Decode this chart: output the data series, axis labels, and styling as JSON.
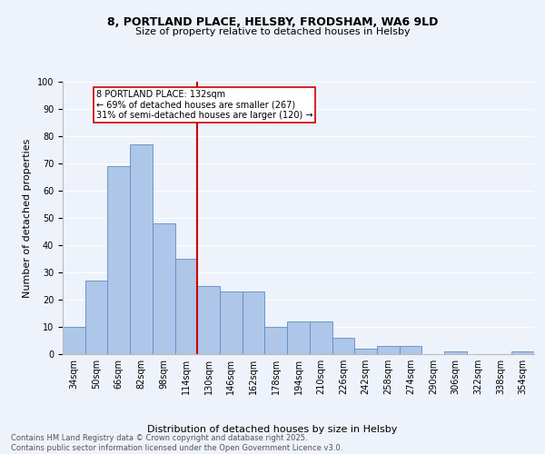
{
  "title1": "8, PORTLAND PLACE, HELSBY, FRODSHAM, WA6 9LD",
  "title2": "Size of property relative to detached houses in Helsby",
  "xlabel": "Distribution of detached houses by size in Helsby",
  "ylabel": "Number of detached properties",
  "categories": [
    "34sqm",
    "50sqm",
    "66sqm",
    "82sqm",
    "98sqm",
    "114sqm",
    "130sqm",
    "146sqm",
    "162sqm",
    "178sqm",
    "194sqm",
    "210sqm",
    "226sqm",
    "242sqm",
    "258sqm",
    "274sqm",
    "290sqm",
    "306sqm",
    "322sqm",
    "338sqm",
    "354sqm"
  ],
  "values": [
    10,
    27,
    69,
    77,
    48,
    35,
    25,
    23,
    23,
    10,
    12,
    12,
    6,
    2,
    3,
    3,
    0,
    1,
    0,
    0,
    1
  ],
  "bar_color": "#aec6e8",
  "bar_edge_color": "#5b8ec7",
  "vline_index": 6,
  "vline_color": "#cc0000",
  "annotation_text": "8 PORTLAND PLACE: 132sqm\n← 69% of detached houses are smaller (267)\n31% of semi-detached houses are larger (120) →",
  "annotation_box_color": "#ffffff",
  "annotation_box_edge": "#cc0000",
  "ylim": [
    0,
    100
  ],
  "yticks": [
    0,
    10,
    20,
    30,
    40,
    50,
    60,
    70,
    80,
    90,
    100
  ],
  "footer": "Contains HM Land Registry data © Crown copyright and database right 2025.\nContains public sector information licensed under the Open Government Licence v3.0.",
  "background_color": "#eef2fa",
  "grid_color": "#ffffff",
  "title1_fontsize": 9,
  "title2_fontsize": 8,
  "ylabel_fontsize": 8,
  "xlabel_fontsize": 8,
  "tick_fontsize": 7,
  "ann_fontsize": 7,
  "footer_fontsize": 6
}
